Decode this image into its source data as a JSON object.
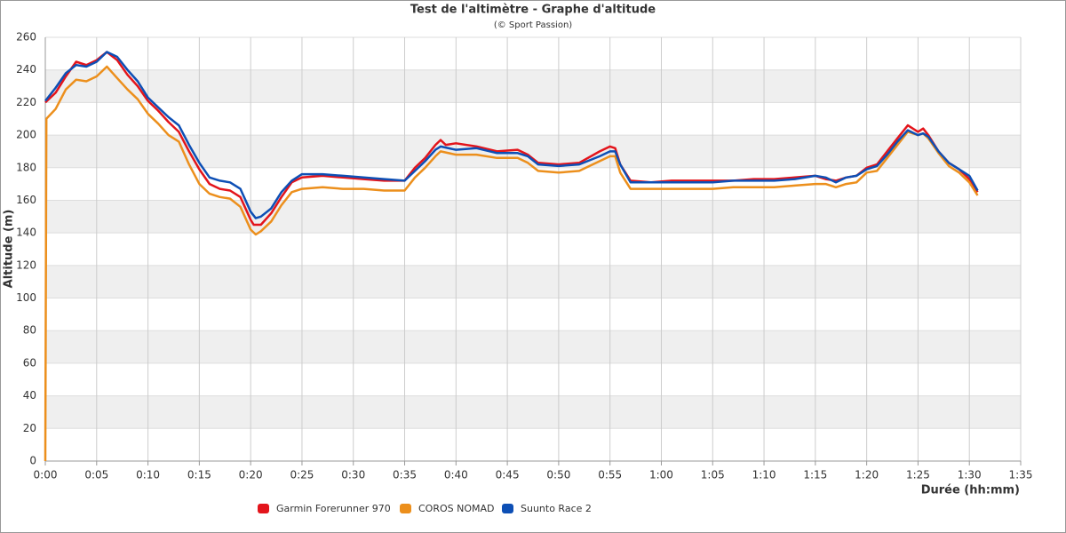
{
  "chart_data": {
    "type": "line",
    "title": "Test de l'altimètre - Graphe d'altitude",
    "subtitle": "(© Sport Passion)",
    "x_label": "Durée (hh:mm)",
    "y_label": "Altitude (m)",
    "xlim": [
      0,
      95
    ],
    "ylim": [
      0,
      260
    ],
    "yticks": [
      0,
      20,
      40,
      60,
      80,
      100,
      120,
      140,
      160,
      180,
      200,
      220,
      240,
      260
    ],
    "xticks": [
      {
        "value": 0,
        "label": "0:00"
      },
      {
        "value": 5,
        "label": "0:05"
      },
      {
        "value": 10,
        "label": "0:10"
      },
      {
        "value": 15,
        "label": "0:15"
      },
      {
        "value": 20,
        "label": "0:20"
      },
      {
        "value": 25,
        "label": "0:25"
      },
      {
        "value": 30,
        "label": "0:30"
      },
      {
        "value": 35,
        "label": "0:35"
      },
      {
        "value": 40,
        "label": "0:40"
      },
      {
        "value": 45,
        "label": "0:45"
      },
      {
        "value": 50,
        "label": "0:50"
      },
      {
        "value": 55,
        "label": "0:55"
      },
      {
        "value": 60,
        "label": "1:00"
      },
      {
        "value": 65,
        "label": "1:05"
      },
      {
        "value": 70,
        "label": "1:10"
      },
      {
        "value": 75,
        "label": "1:15"
      },
      {
        "value": 80,
        "label": "1:20"
      },
      {
        "value": 85,
        "label": "1:25"
      },
      {
        "value": 90,
        "label": "1:30"
      },
      {
        "value": 95,
        "label": "1:35"
      }
    ],
    "grid": true,
    "legend": "bottom",
    "series": [
      {
        "name": "Garmin Forerunner 970",
        "color": "#e3141b",
        "x": [
          0,
          1,
          2,
          3,
          4,
          5,
          6,
          7,
          8,
          9,
          10,
          11,
          12,
          13,
          14,
          15,
          16,
          17,
          18,
          19,
          20,
          20.3,
          21,
          22,
          23,
          24,
          25,
          27,
          29,
          31,
          33,
          35,
          36,
          37,
          38,
          38.5,
          39,
          40,
          42,
          44,
          46,
          47,
          48,
          50,
          52,
          54,
          55,
          55.5,
          56,
          57,
          59,
          61,
          63,
          65,
          67,
          69,
          71,
          73,
          75,
          76,
          77,
          78,
          79,
          80,
          81,
          82,
          83,
          84,
          85,
          85.5,
          86,
          87,
          88,
          89,
          90,
          90.8
        ],
        "values": [
          220,
          226,
          236,
          245,
          243,
          246,
          251,
          246,
          237,
          230,
          221,
          215,
          208,
          202,
          190,
          179,
          170,
          167,
          166,
          162,
          148,
          145,
          145,
          152,
          162,
          171,
          174,
          175,
          174,
          173,
          172,
          172,
          180,
          186,
          194,
          197,
          194,
          195,
          193,
          190,
          191,
          188,
          183,
          182,
          183,
          190,
          193,
          192,
          182,
          172,
          171,
          172,
          172,
          172,
          172,
          173,
          173,
          174,
          175,
          173,
          172,
          174,
          175,
          180,
          182,
          190,
          198,
          206,
          202,
          204,
          200,
          190,
          183,
          179,
          173,
          165
        ]
      },
      {
        "name": "COROS NOMAD",
        "color": "#ec8f1c",
        "x": [
          0,
          0.1,
          1,
          2,
          3,
          4,
          5,
          6,
          7,
          8,
          9,
          10,
          11,
          12,
          13,
          14,
          15,
          16,
          17,
          18,
          19,
          20,
          20.5,
          21,
          22,
          23,
          24,
          25,
          27,
          29,
          31,
          33,
          35,
          36,
          37,
          38,
          38.5,
          40,
          42,
          44,
          46,
          47,
          48,
          50,
          52,
          54,
          55,
          55.5,
          56,
          57,
          59,
          61,
          63,
          65,
          67,
          69,
          71,
          73,
          75,
          76,
          77,
          78,
          79,
          80,
          81,
          82,
          83,
          84,
          85,
          85.5,
          86,
          87,
          88,
          89,
          90,
          90.8
        ],
        "values": [
          0,
          210,
          216,
          228,
          234,
          233,
          236,
          242,
          235,
          228,
          222,
          213,
          207,
          200,
          196,
          182,
          170,
          164,
          162,
          161,
          156,
          142,
          139,
          141,
          147,
          157,
          165,
          167,
          168,
          167,
          167,
          166,
          166,
          174,
          180,
          187,
          190,
          188,
          188,
          186,
          186,
          183,
          178,
          177,
          178,
          184,
          187,
          187,
          177,
          167,
          167,
          167,
          167,
          167,
          168,
          168,
          168,
          169,
          170,
          170,
          168,
          170,
          171,
          177,
          178,
          186,
          194,
          202,
          200,
          201,
          198,
          189,
          181,
          177,
          171,
          163
        ]
      },
      {
        "name": "Suunto Race 2",
        "color": "#0d4fb5",
        "x": [
          0,
          1,
          2,
          3,
          4,
          5,
          6,
          7,
          8,
          9,
          10,
          11,
          12,
          13,
          14,
          15,
          16,
          17,
          18,
          19,
          20,
          20.5,
          21,
          22,
          23,
          24,
          25,
          27,
          29,
          31,
          33,
          35,
          36,
          37,
          38,
          38.5,
          40,
          42,
          44,
          46,
          47,
          48,
          50,
          52,
          54,
          55,
          55.5,
          56,
          57,
          59,
          61,
          63,
          65,
          67,
          69,
          71,
          73,
          75,
          76,
          77,
          78,
          79,
          80,
          81,
          82,
          83,
          84,
          85,
          85.5,
          86,
          87,
          88,
          89,
          90,
          90.8
        ],
        "values": [
          221,
          229,
          238,
          243,
          242,
          245,
          251,
          248,
          240,
          233,
          223,
          217,
          211,
          206,
          194,
          183,
          174,
          172,
          171,
          167,
          153,
          149,
          150,
          155,
          165,
          172,
          176,
          176,
          175,
          174,
          173,
          172,
          178,
          184,
          191,
          193,
          191,
          192,
          189,
          189,
          187,
          182,
          181,
          182,
          187,
          190,
          190,
          182,
          171,
          171,
          171,
          171,
          171,
          172,
          172,
          172,
          173,
          175,
          174,
          171,
          174,
          175,
          179,
          181,
          188,
          196,
          203,
          200,
          201,
          199,
          190,
          183,
          179,
          175,
          166
        ]
      }
    ]
  }
}
